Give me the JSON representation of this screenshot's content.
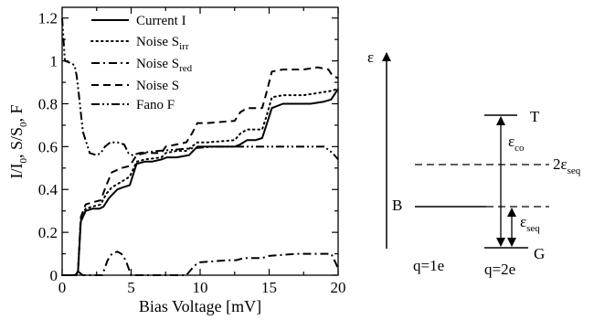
{
  "chart_data": {
    "type": "line",
    "xlabel": "Bias Voltage [mV]",
    "ylabel": "I/I_0, S/S_0, F",
    "ylabel_parts": {
      "a": "I/I",
      "a_sub": "0",
      "b": ", S/S",
      "b_sub": "0",
      "c": ", F"
    },
    "xlim": [
      0,
      20
    ],
    "ylim": [
      0,
      1.25
    ],
    "x_ticks": [
      0,
      5,
      10,
      15,
      20
    ],
    "y_ticks": [
      0,
      0.2,
      0.4,
      0.6,
      0.8,
      1.0,
      1.2
    ],
    "x_tick_labels": [
      "0",
      "5",
      "10",
      "15",
      "20"
    ],
    "y_tick_labels": [
      "0",
      "0.2",
      "0.4",
      "0.6",
      "0.8",
      "1",
      "1.2"
    ],
    "grid": false,
    "legend_position": "top-left",
    "series": [
      {
        "key": "I",
        "name": "Current I",
        "dash": "solid",
        "x": [
          0,
          1.0,
          1.15,
          1.35,
          1.7,
          2.2,
          2.7,
          3.0,
          3.4,
          4.0,
          4.4,
          4.9,
          5.4,
          6.0,
          6.5,
          7.2,
          7.6,
          8.3,
          9.2,
          9.5,
          9.8,
          10.5,
          11.5,
          12.5,
          12.9,
          13.4,
          14.0,
          14.5,
          14.8,
          15.2,
          16.0,
          17.0,
          18.0,
          19.0,
          19.5,
          19.8,
          20.0
        ],
        "y": [
          0,
          0.0,
          0.02,
          0.25,
          0.3,
          0.31,
          0.31,
          0.32,
          0.36,
          0.4,
          0.41,
          0.42,
          0.52,
          0.53,
          0.53,
          0.54,
          0.55,
          0.55,
          0.56,
          0.58,
          0.6,
          0.6,
          0.6,
          0.6,
          0.61,
          0.63,
          0.63,
          0.64,
          0.7,
          0.78,
          0.8,
          0.8,
          0.8,
          0.81,
          0.82,
          0.85,
          0.87
        ]
      },
      {
        "key": "Sirr",
        "name": "Noise S",
        "name_sub": "irr",
        "dash": "dotted",
        "x": [
          0,
          1.0,
          1.15,
          1.35,
          1.7,
          2.2,
          2.8,
          3.2,
          3.6,
          4.4,
          4.9,
          5.4,
          6.0,
          7.2,
          7.5,
          8.3,
          9.0,
          9.4,
          9.8,
          10.5,
          12.5,
          12.9,
          13.4,
          14.5,
          14.8,
          15.2,
          16.0,
          17.5,
          18.5,
          19.5,
          20.0
        ],
        "y": [
          0,
          0.0,
          0.02,
          0.26,
          0.31,
          0.32,
          0.33,
          0.38,
          0.41,
          0.44,
          0.46,
          0.53,
          0.54,
          0.55,
          0.57,
          0.58,
          0.58,
          0.6,
          0.62,
          0.62,
          0.63,
          0.66,
          0.68,
          0.68,
          0.74,
          0.83,
          0.84,
          0.84,
          0.85,
          0.86,
          0.87
        ]
      },
      {
        "key": "Sred",
        "name": "Noise S",
        "name_sub": "red",
        "dash": "dashdot",
        "x": [
          0,
          0.9,
          1.2,
          1.5,
          2.0,
          2.5,
          2.9,
          3.3,
          3.6,
          4.0,
          4.3,
          4.6,
          5.0,
          5.5,
          7.0,
          9.0,
          9.4,
          9.7,
          10.0,
          12.0,
          12.6,
          13.2,
          14.5,
          15.0,
          17.0,
          18.5,
          19.5,
          19.8,
          20.0
        ],
        "y": [
          0,
          0.0,
          0.015,
          0.0,
          0.0,
          0.0,
          0.0,
          0.07,
          0.1,
          0.11,
          0.1,
          0.07,
          0.0,
          0.0,
          0.0,
          0.0,
          0.03,
          0.05,
          0.06,
          0.07,
          0.07,
          0.08,
          0.08,
          0.09,
          0.1,
          0.1,
          0.1,
          0.06,
          0.03
        ]
      },
      {
        "key": "S",
        "name": "Noise S",
        "dash": "dashed",
        "x": [
          0,
          1.0,
          1.15,
          1.35,
          1.7,
          2.2,
          2.8,
          3.2,
          3.6,
          4.3,
          4.9,
          5.4,
          6.0,
          7.2,
          7.5,
          8.3,
          9.0,
          9.4,
          9.8,
          10.5,
          12.5,
          12.9,
          13.4,
          14.5,
          14.8,
          15.2,
          16.0,
          17.5,
          18.5,
          19.3,
          19.6,
          20.0
        ],
        "y": [
          0,
          0.0,
          0.02,
          0.27,
          0.33,
          0.34,
          0.35,
          0.42,
          0.48,
          0.5,
          0.51,
          0.56,
          0.57,
          0.57,
          0.6,
          0.61,
          0.62,
          0.66,
          0.71,
          0.71,
          0.72,
          0.76,
          0.78,
          0.78,
          0.85,
          0.95,
          0.96,
          0.96,
          0.97,
          0.96,
          0.93,
          0.92
        ]
      },
      {
        "key": "F",
        "name": "Fano F",
        "dash": "dashdotdot",
        "x": [
          0,
          0.2,
          0.6,
          0.9,
          1.05,
          1.2,
          1.5,
          2.0,
          2.5,
          2.8,
          3.1,
          3.5,
          4.0,
          4.5,
          4.8,
          5.1,
          5.6,
          7.0,
          9.0,
          11.0,
          13.0,
          15.0,
          17.0,
          19.0,
          19.6,
          20.0
        ],
        "y": [
          1.2,
          1.0,
          0.99,
          0.98,
          0.93,
          0.85,
          0.67,
          0.57,
          0.56,
          0.57,
          0.6,
          0.62,
          0.62,
          0.61,
          0.57,
          0.56,
          0.57,
          0.58,
          0.59,
          0.6,
          0.6,
          0.6,
          0.6,
          0.6,
          0.57,
          0.54
        ]
      }
    ]
  },
  "diagram": {
    "axis_label": "ε",
    "levels": {
      "T": "T",
      "B": "B",
      "G": "G"
    },
    "arrow_co": {
      "symbol": "ε",
      "sub": "co"
    },
    "arrow_seq": {
      "symbol": "ε",
      "sub": "seq"
    },
    "two_eps_seq": {
      "symbol": "2ε",
      "sub": "seq"
    },
    "charge_left": "q=1e",
    "charge_right": "q=2e"
  }
}
